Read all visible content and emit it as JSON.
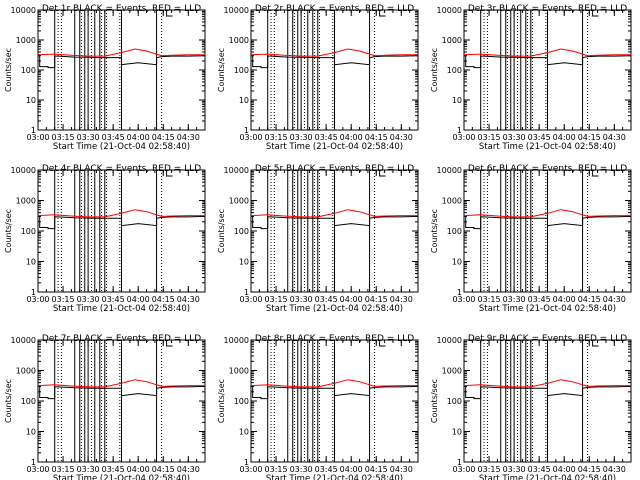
{
  "chart_data": [
    {
      "type": "line",
      "title": "Det 1r BLACK = Events, RED = LLD",
      "xlabel": "Start Time (21-Oct-04 02:58:40)",
      "ylabel": "Counts/sec",
      "x_ticks": [
        "03:00",
        "03:15",
        "03:30",
        "03:45",
        "04:00",
        "04:15",
        "04:30"
      ],
      "y_ticks": [
        "1",
        "10",
        "100",
        "1000",
        "10000"
      ],
      "y_scale": "log",
      "ylim": [
        1,
        10000
      ],
      "xlim": [
        "03:00",
        "04:40"
      ],
      "series": [
        {
          "color": "#000000",
          "x": [
            "03:00",
            "03:01",
            "03:01",
            "03:06",
            "03:06",
            "03:10",
            "03:10",
            "03:12",
            "03:22",
            "03:30",
            "03:38",
            "03:50",
            "03:50",
            "04:00",
            "04:11",
            "04:11",
            "04:14",
            "04:20",
            "04:30",
            "04:40"
          ],
          "values": [
            300,
            300,
            130,
            130,
            120,
            120,
            290,
            290,
            270,
            265,
            260,
            260,
            150,
            175,
            150,
            260,
            280,
            290,
            290,
            300
          ]
        },
        {
          "color": "#ff0000",
          "x": [
            "03:00",
            "03:10",
            "03:20",
            "03:30",
            "03:40",
            "03:50",
            "03:58",
            "04:05",
            "04:14",
            "04:20",
            "04:30",
            "04:40"
          ],
          "values": [
            320,
            340,
            310,
            290,
            290,
            380,
            500,
            430,
            300,
            310,
            320,
            320
          ]
        }
      ]
    },
    {
      "type": "line",
      "title": "Det 2r BLACK = Events, RED = LLD",
      "xlabel": "Start Time (21-Oct-04 02:58:40)",
      "ylabel": "Counts/sec",
      "x_ticks": [
        "03:00",
        "03:15",
        "03:30",
        "03:45",
        "04:00",
        "04:15",
        "04:30"
      ],
      "y_ticks": [
        "1",
        "10",
        "100",
        "1000",
        "10000"
      ],
      "y_scale": "log",
      "ylim": [
        1,
        10000
      ],
      "xlim": [
        "03:00",
        "04:40"
      ],
      "series": [
        {
          "color": "#000000",
          "x": [
            "03:00",
            "03:01",
            "03:01",
            "03:06",
            "03:06",
            "03:10",
            "03:10",
            "03:12",
            "03:22",
            "03:30",
            "03:38",
            "03:50",
            "03:50",
            "04:00",
            "04:11",
            "04:11",
            "04:14",
            "04:20",
            "04:30",
            "04:40"
          ],
          "values": [
            300,
            300,
            130,
            130,
            120,
            120,
            290,
            290,
            270,
            265,
            260,
            260,
            150,
            175,
            150,
            260,
            280,
            290,
            290,
            300
          ]
        },
        {
          "color": "#ff0000",
          "x": [
            "03:00",
            "03:10",
            "03:20",
            "03:30",
            "03:40",
            "03:50",
            "03:58",
            "04:05",
            "04:14",
            "04:20",
            "04:30",
            "04:40"
          ],
          "values": [
            320,
            340,
            310,
            290,
            290,
            380,
            500,
            430,
            300,
            310,
            320,
            320
          ]
        }
      ]
    },
    {
      "type": "line",
      "title": "Det 3r BLACK = Events, RED = LLD",
      "xlabel": "Start Time (21-Oct-04 02:58:40)",
      "ylabel": "Counts/sec",
      "x_ticks": [
        "03:00",
        "03:15",
        "03:30",
        "03:45",
        "04:00",
        "04:15",
        "04:30"
      ],
      "y_ticks": [
        "1",
        "10",
        "100",
        "1000",
        "10000"
      ],
      "y_scale": "log",
      "ylim": [
        1,
        10000
      ],
      "xlim": [
        "03:00",
        "04:40"
      ],
      "series": [
        {
          "color": "#000000",
          "x": [
            "03:00",
            "03:01",
            "03:01",
            "03:06",
            "03:06",
            "03:10",
            "03:10",
            "03:12",
            "03:22",
            "03:30",
            "03:38",
            "03:50",
            "03:50",
            "04:00",
            "04:11",
            "04:11",
            "04:14",
            "04:20",
            "04:30",
            "04:40"
          ],
          "values": [
            300,
            300,
            130,
            130,
            120,
            120,
            290,
            290,
            270,
            265,
            260,
            260,
            150,
            175,
            150,
            260,
            280,
            290,
            290,
            300
          ]
        },
        {
          "color": "#ff0000",
          "x": [
            "03:00",
            "03:10",
            "03:20",
            "03:30",
            "03:40",
            "03:50",
            "03:58",
            "04:05",
            "04:14",
            "04:20",
            "04:30",
            "04:40"
          ],
          "values": [
            320,
            340,
            310,
            290,
            290,
            380,
            500,
            430,
            300,
            310,
            320,
            320
          ]
        }
      ]
    },
    {
      "type": "line",
      "title": "Det 4r BLACK = Events, RED = LLD",
      "xlabel": "Start Time (21-Oct-04 02:58:40)",
      "ylabel": "Counts/sec",
      "x_ticks": [
        "03:00",
        "03:15",
        "03:30",
        "03:45",
        "04:00",
        "04:15",
        "04:30"
      ],
      "y_ticks": [
        "1",
        "10",
        "100",
        "1000",
        "10000"
      ],
      "y_scale": "log",
      "ylim": [
        1,
        10000
      ],
      "xlim": [
        "03:00",
        "04:40"
      ],
      "series": [
        {
          "color": "#000000",
          "x": [
            "03:00",
            "03:01",
            "03:01",
            "03:06",
            "03:06",
            "03:10",
            "03:10",
            "03:12",
            "03:22",
            "03:30",
            "03:38",
            "03:50",
            "03:50",
            "04:00",
            "04:11",
            "04:11",
            "04:14",
            "04:20",
            "04:30",
            "04:40"
          ],
          "values": [
            300,
            300,
            130,
            130,
            120,
            120,
            290,
            290,
            270,
            265,
            260,
            260,
            150,
            175,
            150,
            260,
            280,
            290,
            290,
            300
          ]
        },
        {
          "color": "#ff0000",
          "x": [
            "03:00",
            "03:10",
            "03:20",
            "03:30",
            "03:40",
            "03:50",
            "03:58",
            "04:05",
            "04:14",
            "04:20",
            "04:30",
            "04:40"
          ],
          "values": [
            320,
            340,
            310,
            290,
            290,
            380,
            500,
            430,
            300,
            310,
            320,
            320
          ]
        }
      ]
    },
    {
      "type": "line",
      "title": "Det 5r BLACK = Events, RED = LLD",
      "xlabel": "Start Time (21-Oct-04 02:58:40)",
      "ylabel": "Counts/sec",
      "x_ticks": [
        "03:00",
        "03:15",
        "03:30",
        "03:45",
        "04:00",
        "04:15",
        "04:30"
      ],
      "y_ticks": [
        "1",
        "10",
        "100",
        "1000",
        "10000"
      ],
      "y_scale": "log",
      "ylim": [
        1,
        10000
      ],
      "xlim": [
        "03:00",
        "04:40"
      ],
      "series": [
        {
          "color": "#000000",
          "x": [
            "03:00",
            "03:01",
            "03:01",
            "03:06",
            "03:06",
            "03:10",
            "03:10",
            "03:12",
            "03:22",
            "03:30",
            "03:38",
            "03:50",
            "03:50",
            "04:00",
            "04:11",
            "04:11",
            "04:14",
            "04:20",
            "04:30",
            "04:40"
          ],
          "values": [
            300,
            300,
            130,
            130,
            120,
            120,
            290,
            290,
            270,
            265,
            260,
            260,
            150,
            175,
            150,
            260,
            280,
            290,
            290,
            300
          ]
        },
        {
          "color": "#ff0000",
          "x": [
            "03:00",
            "03:10",
            "03:20",
            "03:30",
            "03:40",
            "03:50",
            "03:58",
            "04:05",
            "04:14",
            "04:20",
            "04:30",
            "04:40"
          ],
          "values": [
            320,
            340,
            310,
            290,
            290,
            380,
            500,
            430,
            300,
            310,
            320,
            320
          ]
        }
      ]
    },
    {
      "type": "line",
      "title": "Det 6r BLACK = Events, RED = LLD",
      "xlabel": "Start Time (21-Oct-04 02:58:40)",
      "ylabel": "Counts/sec",
      "x_ticks": [
        "03:00",
        "03:15",
        "03:30",
        "03:45",
        "04:00",
        "04:15",
        "04:30"
      ],
      "y_ticks": [
        "1",
        "10",
        "100",
        "1000",
        "10000"
      ],
      "y_scale": "log",
      "ylim": [
        1,
        10000
      ],
      "xlim": [
        "03:00",
        "04:40"
      ],
      "series": [
        {
          "color": "#000000",
          "x": [
            "03:00",
            "03:01",
            "03:01",
            "03:06",
            "03:06",
            "03:10",
            "03:10",
            "03:12",
            "03:22",
            "03:30",
            "03:38",
            "03:50",
            "03:50",
            "04:00",
            "04:11",
            "04:11",
            "04:14",
            "04:20",
            "04:30",
            "04:40"
          ],
          "values": [
            300,
            300,
            130,
            130,
            120,
            120,
            290,
            290,
            270,
            265,
            260,
            260,
            150,
            175,
            150,
            260,
            280,
            290,
            290,
            300
          ]
        },
        {
          "color": "#ff0000",
          "x": [
            "03:00",
            "03:10",
            "03:20",
            "03:30",
            "03:40",
            "03:50",
            "03:58",
            "04:05",
            "04:14",
            "04:20",
            "04:30",
            "04:40"
          ],
          "values": [
            320,
            340,
            310,
            290,
            290,
            380,
            500,
            430,
            300,
            310,
            320,
            320
          ]
        }
      ]
    },
    {
      "type": "line",
      "title": "Det 7r BLACK = Events, RED = LLD",
      "xlabel": "Start Time (21-Oct-04 02:58:40)",
      "ylabel": "Counts/sec",
      "x_ticks": [
        "03:00",
        "03:15",
        "03:30",
        "03:45",
        "04:00",
        "04:15",
        "04:30"
      ],
      "y_ticks": [
        "1",
        "10",
        "100",
        "1000",
        "10000"
      ],
      "y_scale": "log",
      "ylim": [
        1,
        10000
      ],
      "xlim": [
        "03:00",
        "04:40"
      ],
      "series": [
        {
          "color": "#000000",
          "x": [
            "03:00",
            "03:01",
            "03:01",
            "03:06",
            "03:06",
            "03:10",
            "03:10",
            "03:12",
            "03:22",
            "03:30",
            "03:38",
            "03:50",
            "03:50",
            "04:00",
            "04:11",
            "04:11",
            "04:14",
            "04:20",
            "04:30",
            "04:40"
          ],
          "values": [
            300,
            300,
            130,
            130,
            120,
            120,
            290,
            290,
            270,
            265,
            260,
            260,
            150,
            175,
            150,
            260,
            280,
            290,
            290,
            300
          ]
        },
        {
          "color": "#ff0000",
          "x": [
            "03:00",
            "03:10",
            "03:20",
            "03:30",
            "03:40",
            "03:50",
            "03:58",
            "04:05",
            "04:14",
            "04:20",
            "04:30",
            "04:40"
          ],
          "values": [
            320,
            340,
            310,
            290,
            290,
            380,
            500,
            430,
            300,
            310,
            320,
            320
          ]
        }
      ]
    },
    {
      "type": "line",
      "title": "Det 8r BLACK = Events, RED = LLD",
      "xlabel": "Start Time (21-Oct-04 02:58:40)",
      "ylabel": "Counts/sec",
      "x_ticks": [
        "03:00",
        "03:15",
        "03:30",
        "03:45",
        "04:00",
        "04:15",
        "04:30"
      ],
      "y_ticks": [
        "1",
        "10",
        "100",
        "1000",
        "10000"
      ],
      "y_scale": "log",
      "ylim": [
        1,
        10000
      ],
      "xlim": [
        "03:00",
        "04:40"
      ],
      "series": [
        {
          "color": "#000000",
          "x": [
            "03:00",
            "03:01",
            "03:01",
            "03:06",
            "03:06",
            "03:10",
            "03:10",
            "03:12",
            "03:22",
            "03:30",
            "03:38",
            "03:50",
            "03:50",
            "04:00",
            "04:11",
            "04:11",
            "04:14",
            "04:20",
            "04:30",
            "04:40"
          ],
          "values": [
            300,
            300,
            130,
            130,
            120,
            120,
            290,
            290,
            270,
            265,
            260,
            260,
            150,
            175,
            150,
            260,
            280,
            290,
            290,
            300
          ]
        },
        {
          "color": "#ff0000",
          "x": [
            "03:00",
            "03:10",
            "03:20",
            "03:30",
            "03:40",
            "03:50",
            "03:58",
            "04:05",
            "04:14",
            "04:20",
            "04:30",
            "04:40"
          ],
          "values": [
            320,
            340,
            310,
            290,
            290,
            380,
            500,
            430,
            300,
            310,
            320,
            320
          ]
        }
      ]
    },
    {
      "type": "line",
      "title": "Det 9r BLACK = Events, RED = LLD",
      "xlabel": "Start Time (21-Oct-04 02:58:40)",
      "ylabel": "Counts/sec",
      "x_ticks": [
        "03:00",
        "03:15",
        "03:30",
        "03:45",
        "04:00",
        "04:15",
        "04:30"
      ],
      "y_ticks": [
        "1",
        "10",
        "100",
        "1000",
        "10000"
      ],
      "y_scale": "log",
      "ylim": [
        1,
        10000
      ],
      "xlim": [
        "03:00",
        "04:40"
      ],
      "series": [
        {
          "color": "#000000",
          "x": [
            "03:00",
            "03:01",
            "03:01",
            "03:06",
            "03:06",
            "03:10",
            "03:10",
            "03:12",
            "03:22",
            "03:30",
            "03:38",
            "03:50",
            "03:50",
            "04:00",
            "04:11",
            "04:11",
            "04:14",
            "04:20",
            "04:30",
            "04:40"
          ],
          "values": [
            300,
            300,
            130,
            130,
            120,
            120,
            290,
            290,
            270,
            265,
            260,
            260,
            150,
            175,
            150,
            260,
            280,
            290,
            290,
            300
          ]
        },
        {
          "color": "#ff0000",
          "x": [
            "03:00",
            "03:10",
            "03:20",
            "03:30",
            "03:40",
            "03:50",
            "03:58",
            "04:05",
            "04:14",
            "04:20",
            "04:30",
            "04:40"
          ],
          "values": [
            320,
            340,
            310,
            290,
            290,
            380,
            500,
            430,
            300,
            310,
            320,
            320
          ]
        }
      ]
    }
  ],
  "markers": {
    "solid_times": [
      "03:10",
      "03:22",
      "03:25",
      "03:28",
      "03:30",
      "03:34",
      "03:37",
      "03:40",
      "03:50",
      "04:11"
    ],
    "dotted_times": [
      "03:12",
      "03:14",
      "03:26",
      "03:32",
      "03:38",
      "03:41",
      "03:49",
      "04:14"
    ]
  }
}
